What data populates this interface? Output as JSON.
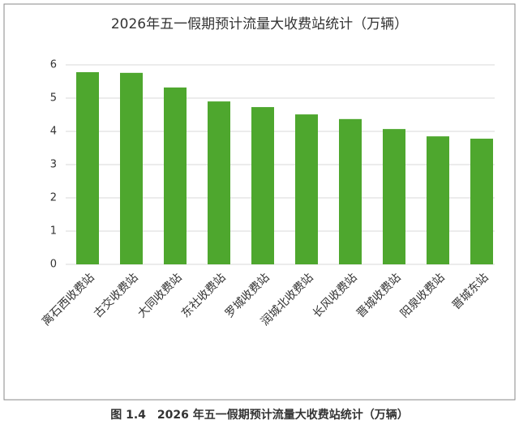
{
  "chart_data": {
    "type": "bar",
    "title": "2026年五一假期预计流量大收费站统计（万辆）",
    "caption": "图 1.4　2026 年五一假期预计流量大收费站统计（万辆）",
    "categories": [
      "离石西收费站",
      "古交收费站",
      "大同收费站",
      "东社收费站",
      "罗城收费站",
      "润城北收费站",
      "长风收费站",
      "晋城收费站",
      "阳泉收费站",
      "晋城东站"
    ],
    "values": [
      5.78,
      5.76,
      5.32,
      4.9,
      4.73,
      4.51,
      4.37,
      4.07,
      3.85,
      3.78
    ],
    "color": "#4ea72e",
    "ylim": [
      0,
      6
    ],
    "yticks": [
      0,
      1,
      2,
      3,
      4,
      5,
      6
    ],
    "grid": true
  }
}
